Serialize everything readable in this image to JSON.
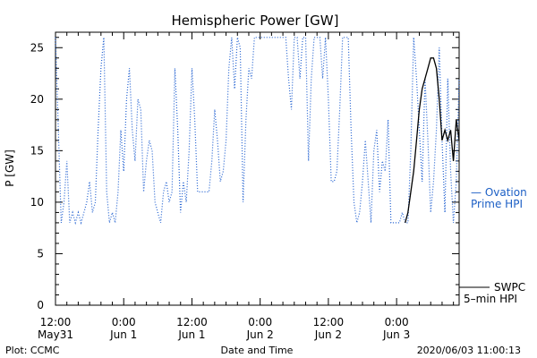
{
  "colors": {
    "ovation": "#1f5fd0",
    "swpc": "#000000",
    "axis": "#000000"
  },
  "chart_data": {
    "type": "line",
    "title": "Hemispheric Power [GW]",
    "xlabel": "Date and Time",
    "ylabel": "P [GW]",
    "ylim": [
      0,
      26.5
    ],
    "xlim": [
      0,
      71.0
    ],
    "x_unit": "hours since 2020-05-31 12:00 UTC",
    "yticks": [
      0,
      5,
      10,
      15,
      20,
      25
    ],
    "xticks": [
      {
        "x": 0,
        "line1": "12:00",
        "line2": "May31"
      },
      {
        "x": 12,
        "line1": "0:00",
        "line2": "Jun 1"
      },
      {
        "x": 24,
        "line1": "12:00",
        "line2": "Jun 1"
      },
      {
        "x": 36,
        "line1": "0:00",
        "line2": "Jun 2"
      },
      {
        "x": 48,
        "line1": "12:00",
        "line2": "Jun 2"
      },
      {
        "x": 60,
        "line1": "0:00",
        "line2": "Jun 3"
      }
    ],
    "grid": false,
    "series": [
      {
        "name": "Ovation Prime HPI",
        "style": "dotted",
        "color": "#1f5fd0",
        "points": [
          [
            0.0,
            26
          ],
          [
            0.5,
            17
          ],
          [
            1.0,
            8
          ],
          [
            1.5,
            10
          ],
          [
            2.0,
            14
          ],
          [
            2.5,
            8
          ],
          [
            3.0,
            9
          ],
          [
            3.5,
            8
          ],
          [
            4.0,
            9
          ],
          [
            4.5,
            8
          ],
          [
            5.0,
            9
          ],
          [
            5.5,
            10
          ],
          [
            6.0,
            12
          ],
          [
            6.5,
            9
          ],
          [
            7.0,
            10
          ],
          [
            7.5,
            17
          ],
          [
            8.0,
            23
          ],
          [
            8.5,
            26
          ],
          [
            9.0,
            11
          ],
          [
            9.5,
            8
          ],
          [
            10.0,
            9
          ],
          [
            10.5,
            8
          ],
          [
            11.0,
            11
          ],
          [
            11.5,
            17
          ],
          [
            12.0,
            13
          ],
          [
            12.5,
            20
          ],
          [
            13.0,
            23
          ],
          [
            13.5,
            17
          ],
          [
            14.0,
            14
          ],
          [
            14.5,
            20
          ],
          [
            15.0,
            19
          ],
          [
            15.5,
            11
          ],
          [
            16.0,
            14
          ],
          [
            16.5,
            16
          ],
          [
            17.0,
            15
          ],
          [
            17.5,
            10
          ],
          [
            18.0,
            9
          ],
          [
            18.5,
            8
          ],
          [
            19.0,
            11
          ],
          [
            19.5,
            12
          ],
          [
            20.0,
            10
          ],
          [
            20.5,
            11
          ],
          [
            21.0,
            23
          ],
          [
            21.5,
            17
          ],
          [
            22.0,
            9
          ],
          [
            22.5,
            12
          ],
          [
            23.0,
            10
          ],
          [
            23.5,
            15
          ],
          [
            24.0,
            23
          ],
          [
            24.5,
            18
          ],
          [
            25.0,
            11
          ],
          [
            25.5,
            11
          ],
          [
            26.0,
            11
          ],
          [
            26.5,
            11
          ],
          [
            27.0,
            11
          ],
          [
            27.5,
            14
          ],
          [
            28.0,
            19
          ],
          [
            28.5,
            16
          ],
          [
            29.0,
            12
          ],
          [
            29.5,
            13
          ],
          [
            30.0,
            16
          ],
          [
            30.5,
            23
          ],
          [
            31.0,
            26
          ],
          [
            31.5,
            21
          ],
          [
            32.0,
            26
          ],
          [
            32.5,
            25
          ],
          [
            33.0,
            10
          ],
          [
            33.5,
            18
          ],
          [
            34.0,
            23
          ],
          [
            34.5,
            22
          ],
          [
            35.0,
            26
          ],
          [
            35.5,
            26
          ],
          [
            36.0,
            26
          ],
          [
            36.5,
            26
          ],
          [
            37.0,
            26
          ],
          [
            37.5,
            26
          ],
          [
            38.0,
            26
          ],
          [
            38.5,
            26
          ],
          [
            39.0,
            26
          ],
          [
            39.5,
            26
          ],
          [
            40.0,
            26
          ],
          [
            40.5,
            26
          ],
          [
            41.0,
            22
          ],
          [
            41.5,
            19
          ],
          [
            42.0,
            26
          ],
          [
            42.5,
            26
          ],
          [
            43.0,
            22
          ],
          [
            43.5,
            26
          ],
          [
            44.0,
            26
          ],
          [
            44.5,
            14
          ],
          [
            45.0,
            22
          ],
          [
            45.5,
            26
          ],
          [
            46.0,
            26
          ],
          [
            46.5,
            26
          ],
          [
            47.0,
            22
          ],
          [
            47.5,
            26
          ],
          [
            48.0,
            20
          ],
          [
            48.5,
            12
          ],
          [
            49.0,
            12
          ],
          [
            49.5,
            13
          ],
          [
            50.0,
            19
          ],
          [
            50.5,
            26
          ],
          [
            51.0,
            26
          ],
          [
            51.5,
            26
          ],
          [
            52.0,
            17
          ],
          [
            52.5,
            10
          ],
          [
            53.0,
            8
          ],
          [
            53.5,
            9
          ],
          [
            54.0,
            12
          ],
          [
            54.5,
            16
          ],
          [
            55.0,
            12
          ],
          [
            55.5,
            8
          ],
          [
            56.0,
            15
          ],
          [
            56.5,
            17
          ],
          [
            57.0,
            11
          ],
          [
            57.5,
            14
          ],
          [
            58.0,
            13
          ],
          [
            58.5,
            18
          ],
          [
            59.0,
            8
          ],
          [
            59.5,
            8
          ],
          [
            60.0,
            8
          ],
          [
            60.5,
            8
          ],
          [
            61.0,
            9
          ],
          [
            61.5,
            8
          ],
          [
            62.0,
            8
          ],
          [
            62.5,
            15
          ],
          [
            63.0,
            26
          ],
          [
            63.5,
            22
          ],
          [
            64.0,
            17
          ],
          [
            64.5,
            12
          ],
          [
            65.0,
            22
          ],
          [
            65.5,
            16
          ],
          [
            66.0,
            9
          ],
          [
            66.5,
            12
          ],
          [
            67.0,
            17
          ],
          [
            67.5,
            25
          ],
          [
            68.0,
            16
          ],
          [
            68.5,
            9
          ],
          [
            69.0,
            22
          ],
          [
            69.5,
            13
          ],
          [
            70.0,
            8
          ],
          [
            70.5,
            12
          ],
          [
            71.0,
            22
          ]
        ]
      },
      {
        "name": "SWPC 5-min HPI",
        "style": "solid",
        "color": "#000000",
        "points": [
          [
            61.5,
            8
          ],
          [
            62.0,
            9
          ],
          [
            62.5,
            11
          ],
          [
            63.0,
            13
          ],
          [
            63.5,
            16
          ],
          [
            64.0,
            19
          ],
          [
            64.5,
            21
          ],
          [
            65.0,
            22
          ],
          [
            65.5,
            23
          ],
          [
            66.0,
            24
          ],
          [
            66.5,
            24
          ],
          [
            67.0,
            23
          ],
          [
            67.5,
            20
          ],
          [
            68.0,
            16
          ],
          [
            68.5,
            17
          ],
          [
            69.0,
            16
          ],
          [
            69.5,
            17
          ],
          [
            70.0,
            14
          ],
          [
            70.5,
            18
          ],
          [
            71.0,
            16
          ]
        ]
      }
    ],
    "legend": [
      {
        "series": "Ovation Prime HPI",
        "line1": "— Ovation",
        "line2": "Prime HPI"
      },
      {
        "series": "SWPC 5-min HPI",
        "line1": "SWPC",
        "line2": "5–min HPI"
      }
    ]
  },
  "footer": {
    "left": "Plot: CCMC",
    "center": "Date and Time",
    "right": "2020/06/03 11:00:13"
  }
}
